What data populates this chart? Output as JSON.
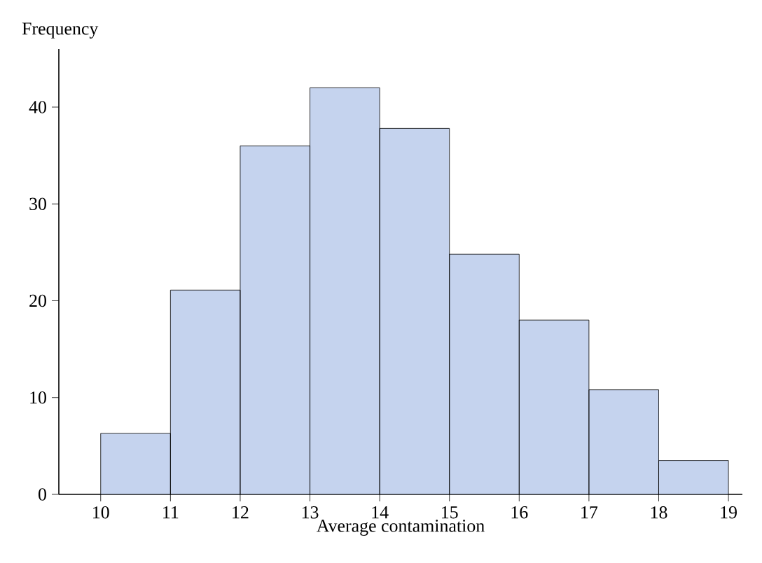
{
  "chart_data": {
    "type": "histogram",
    "xlabel": "Average contamination",
    "ylabel": "Frequency",
    "bins": [
      10,
      11,
      12,
      13,
      14,
      15,
      16,
      17,
      18,
      19
    ],
    "values": [
      6.3,
      21.1,
      36,
      42,
      37.8,
      24.8,
      18,
      10.8,
      3.5
    ],
    "color": "#c5d3ee",
    "xlim": [
      9.4,
      19.2
    ],
    "ylim": [
      0,
      46
    ],
    "xticks": [
      10,
      11,
      12,
      13,
      14,
      15,
      16,
      17,
      18,
      19
    ],
    "yticks": [
      0,
      10,
      20,
      30,
      40
    ],
    "grid": false
  }
}
